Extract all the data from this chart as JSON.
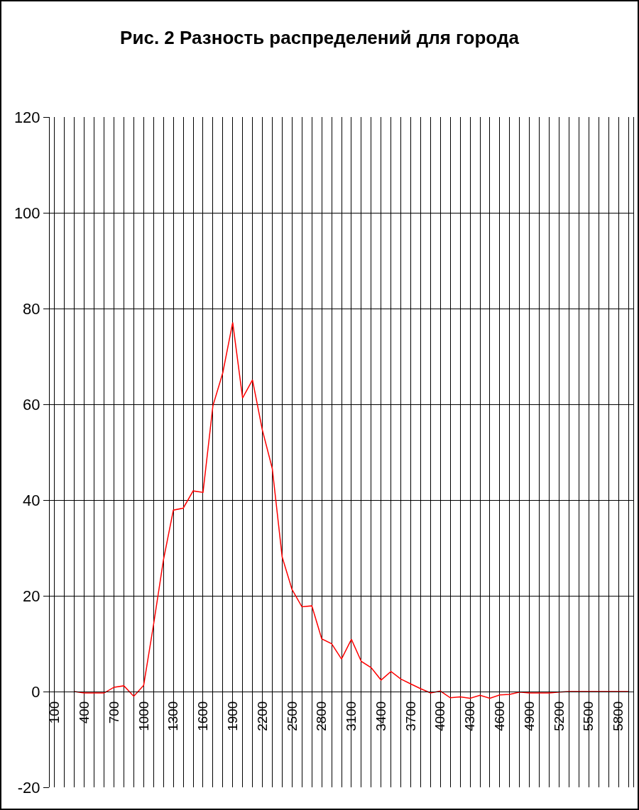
{
  "chart_data": {
    "type": "line",
    "title": "Рис. 2 Разность распределений для города",
    "x": [
      300,
      400,
      500,
      600,
      700,
      800,
      900,
      1000,
      1100,
      1200,
      1300,
      1400,
      1500,
      1600,
      1700,
      1800,
      1900,
      2000,
      2100,
      2200,
      2300,
      2400,
      2500,
      2600,
      2700,
      2800,
      2900,
      3000,
      3100,
      3200,
      3300,
      3400,
      3500,
      3600,
      3700,
      3800,
      3900,
      4000,
      4100,
      4200,
      4300,
      4400,
      4500,
      4600,
      4700,
      4800,
      4900,
      5000,
      5100,
      5200,
      5300,
      5400,
      5500,
      5600,
      5700,
      5800,
      5900
    ],
    "series": [
      {
        "color": "#ff0000",
        "values": [
          0,
          -0.3,
          -0.3,
          -0.3,
          0.9,
          1.2,
          -1,
          1.3,
          14,
          27.5,
          37.9,
          38.3,
          41.9,
          41.6,
          59.7,
          66.6,
          77.1,
          61.3,
          65.1,
          54.6,
          46.6,
          28.1,
          21.3,
          17.7,
          17.9,
          11,
          10,
          6.8,
          10.9,
          6.3,
          5,
          2.4,
          4.2,
          2.6,
          1.6,
          0.6,
          -0.3,
          0.1,
          -1.3,
          -1.1,
          -1.4,
          -0.8,
          -1.4,
          -0.7,
          -0.6,
          -0.1,
          -0.3,
          -0.3,
          -0.3,
          -0.1,
          0,
          0,
          0,
          0,
          0,
          0,
          0
        ]
      }
    ],
    "xlim": [
      50,
      5950
    ],
    "xticks": [
      100,
      400,
      700,
      1000,
      1300,
      1600,
      1900,
      2200,
      2500,
      2800,
      3100,
      3400,
      3700,
      4000,
      4300,
      4600,
      4900,
      5200,
      5500,
      5800
    ],
    "ylim": [
      -20,
      120
    ],
    "yticks": [
      -20,
      0,
      20,
      40,
      60,
      80,
      100,
      120
    ],
    "grid": true,
    "marker": "none",
    "line_style": "solid"
  }
}
